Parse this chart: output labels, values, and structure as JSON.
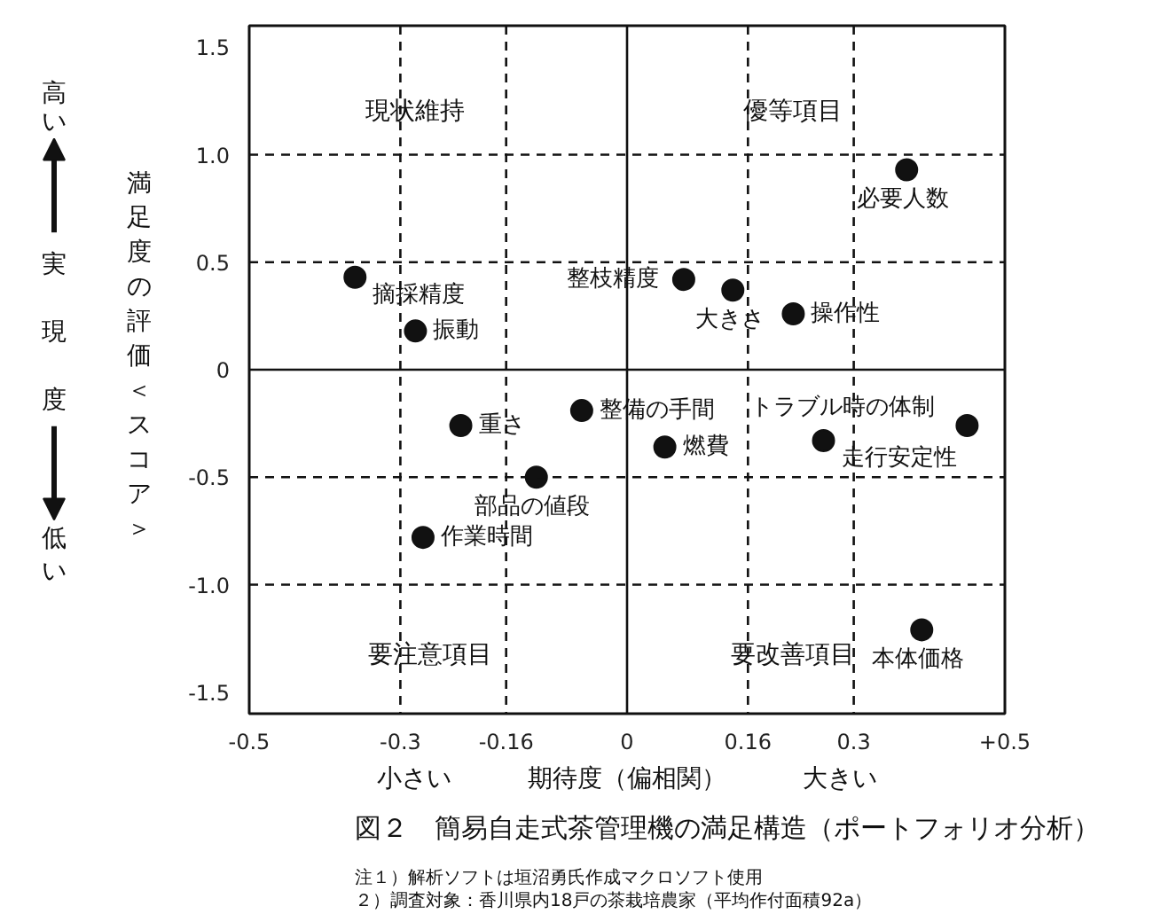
{
  "chart_data": {
    "type": "scatter",
    "title": "図２　簡易自走式茶管理機の満足構造（ポートフォリオ分析）",
    "xlabel": "期待度（偏相関）",
    "ylabel": "満足度の評価＜スコア＞",
    "xlim": [
      -0.5,
      0.5
    ],
    "ylim": [
      -1.6,
      1.6
    ],
    "xticks": [
      -0.5,
      -0.3,
      -0.16,
      0,
      0.16,
      0.3,
      {
        "value": 0.5,
        "label": "+0.5"
      }
    ],
    "yticks": [
      {
        "value": -1.5,
        "label": "-1.5"
      },
      {
        "value": -1,
        "label": "-1.0"
      },
      {
        "value": -0.5,
        "label": "-0.5"
      },
      0,
      0.5,
      {
        "value": 1,
        "label": "1.0"
      },
      1.5
    ],
    "marker": "circle",
    "series": [
      {
        "name": "摘採精度",
        "color": "#111111",
        "x": [
          -0.36
        ],
        "values": [
          0.43
        ]
      },
      {
        "name": "振動",
        "color": "#111111",
        "x": [
          -0.28
        ],
        "values": [
          0.18
        ]
      },
      {
        "name": "必要人数",
        "color": "#111111",
        "x": [
          0.37
        ],
        "values": [
          0.93
        ]
      },
      {
        "name": "整枝精度",
        "color": "#111111",
        "x": [
          0.075
        ],
        "values": [
          0.42
        ]
      },
      {
        "name": "大きさ",
        "color": "#111111",
        "x": [
          0.14
        ],
        "values": [
          0.37
        ]
      },
      {
        "name": "操作性",
        "color": "#111111",
        "x": [
          0.22
        ],
        "values": [
          0.26
        ]
      },
      {
        "name": "重さ",
        "color": "#111111",
        "x": [
          -0.22
        ],
        "values": [
          -0.26
        ]
      },
      {
        "name": "整備の手間",
        "color": "#111111",
        "x": [
          -0.06
        ],
        "values": [
          -0.19
        ]
      },
      {
        "name": "部品の値段",
        "color": "#111111",
        "x": [
          -0.12
        ],
        "values": [
          -0.5
        ]
      },
      {
        "name": "作業時間",
        "color": "#111111",
        "x": [
          -0.27
        ],
        "values": [
          -0.78
        ]
      },
      {
        "name": "燃費",
        "color": "#111111",
        "x": [
          0.05
        ],
        "values": [
          -0.36
        ]
      },
      {
        "name": "走行安定性",
        "color": "#111111",
        "x": [
          0.26
        ],
        "values": [
          -0.33
        ]
      },
      {
        "name": "トラブル時の体制",
        "color": "#111111",
        "x": [
          0.45
        ],
        "values": [
          -0.26
        ]
      },
      {
        "name": "本体価格",
        "color": "#111111",
        "x": [
          0.39
        ],
        "values": [
          -1.21
        ]
      }
    ],
    "ref_lines": [
      {
        "axis": "x",
        "value": -0.3,
        "line_style": "dashed",
        "color": "#111111"
      },
      {
        "axis": "x",
        "value": -0.16,
        "line_style": "dashed",
        "color": "#111111"
      },
      {
        "axis": "x",
        "value": 0,
        "line_style": "solid",
        "color": "#111111"
      },
      {
        "axis": "x",
        "value": 0.16,
        "line_style": "dashed",
        "color": "#111111"
      },
      {
        "axis": "x",
        "value": 0.3,
        "line_style": "dashed",
        "color": "#111111"
      },
      {
        "axis": "y",
        "value": 1,
        "line_style": "dashed",
        "color": "#111111"
      },
      {
        "axis": "y",
        "value": 0.5,
        "line_style": "dashed",
        "color": "#111111"
      },
      {
        "axis": "y",
        "value": 0,
        "line_style": "solid",
        "color": "#111111"
      },
      {
        "axis": "y",
        "value": -0.5,
        "line_style": "dashed",
        "color": "#111111"
      },
      {
        "axis": "y",
        "value": -1,
        "line_style": "dashed",
        "color": "#111111"
      }
    ],
    "annotations": [
      "現状維持",
      "優等項目",
      "要注意項目",
      "要改善項目",
      "高い",
      "実現度",
      "低い",
      "小さい",
      "大きい",
      "注１）解析ソフトは垣沼勇氏作成マクロソフト使用",
      "２）調査対象：香川県内18戸の茶栽培農家（平均作付面積92a）"
    ]
  }
}
